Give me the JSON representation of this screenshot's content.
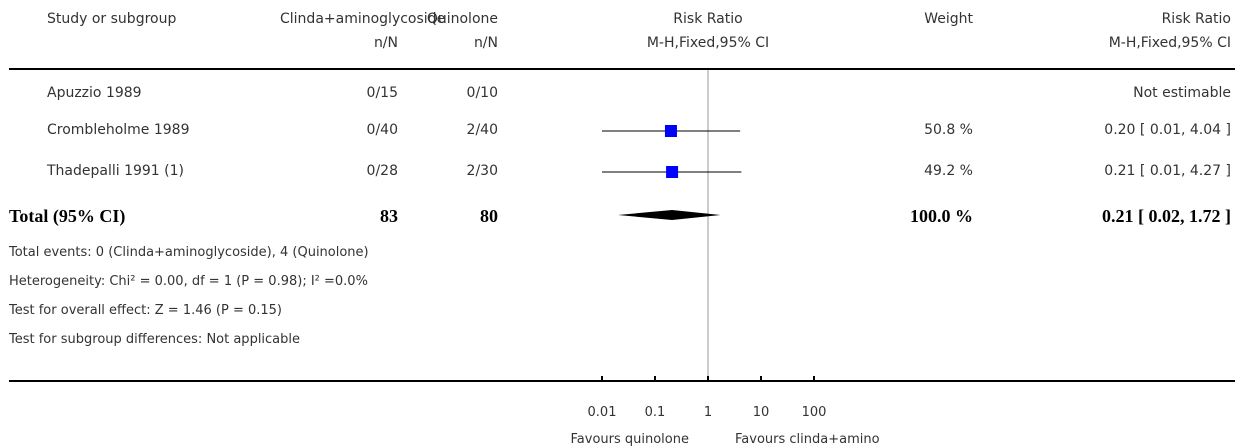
{
  "header": {
    "study": "Study or subgroup",
    "group1": "Clinda+aminoglycoside",
    "group2": "Quinolone",
    "group1_sub": "n/N",
    "group2_sub": "n/N",
    "rr": "Risk Ratio",
    "rr_sub": "M-H,Fixed,95% CI",
    "weight": "Weight",
    "rr2": "Risk Ratio",
    "rr2_sub": "M-H,Fixed,95% CI"
  },
  "rows": [
    {
      "study": "Apuzzio 1989",
      "g1": "0/15",
      "g2": "0/10",
      "weight": "",
      "ci": "Not estimable"
    },
    {
      "study": "Crombleholme 1989",
      "g1": "0/40",
      "g2": "2/40",
      "weight": "50.8 %",
      "ci": "0.20 [ 0.01, 4.04 ]"
    },
    {
      "study": "Thadepalli 1991 (1)",
      "g1": "0/28",
      "g2": "2/30",
      "weight": "49.2 %",
      "ci": "0.21 [ 0.01, 4.27 ]"
    }
  ],
  "total": {
    "label": "Total (95% CI)",
    "g1": "83",
    "g2": "80",
    "weight": "100.0 %",
    "ci": "0.21 [ 0.02, 1.72 ]"
  },
  "notes": [
    "Total events: 0 (Clinda+aminoglycoside), 4 (Quinolone)",
    "Heterogeneity: Chi² = 0.00, df = 1 (P = 0.98); I² =0.0%",
    "Test for overall effect: Z = 1.46 (P = 0.15)",
    "Test for subgroup differences: Not applicable"
  ],
  "axis": {
    "ticks": [
      "0.01",
      "0.1",
      "1",
      "10",
      "100"
    ],
    "favours_left": "Favours quinolone",
    "favours_right": "Favours clinda+amino"
  },
  "colors": {
    "marker": "#0000ff",
    "line": "#000000"
  },
  "chart_data": {
    "type": "forest",
    "scale": "log",
    "xlim": [
      0.01,
      100
    ],
    "null_line": 1,
    "studies": [
      {
        "name": "Apuzzio 1989",
        "rr": null,
        "lower": null,
        "upper": null,
        "weight": null
      },
      {
        "name": "Crombleholme 1989",
        "rr": 0.2,
        "lower": 0.01,
        "upper": 4.04,
        "weight": 50.8
      },
      {
        "name": "Thadepalli 1991 (1)",
        "rr": 0.21,
        "lower": 0.01,
        "upper": 4.27,
        "weight": 49.2
      }
    ],
    "total": {
      "rr": 0.21,
      "lower": 0.02,
      "upper": 1.72,
      "weight": 100.0
    }
  }
}
